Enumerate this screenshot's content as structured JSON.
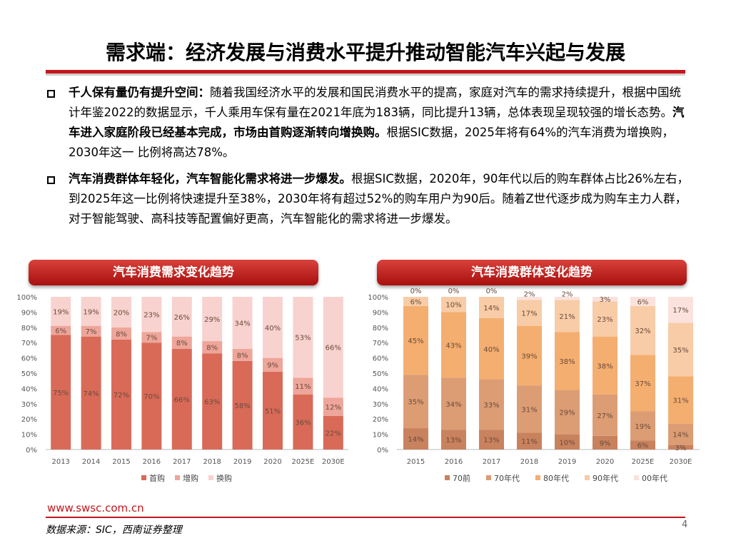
{
  "page": {
    "title": "需求端：经济发展与消费水平提升推动智能汽车兴起与发展",
    "bullets": [
      {
        "parts": [
          {
            "text": "千人保有量仍有提升空间：",
            "bold": true
          },
          {
            "text": "随着我国经济水平的发展和国民消费水平的提高，家庭对汽车的需求持续提升，根据中国统计年鉴2022的数据显示，千人乘用车保有量在2021年底为183辆，同比提升13辆，总体表现呈现较强的增长态势。",
            "bold": false
          },
          {
            "text": "汽车进入家庭阶段已经基本完成，市场由首购逐渐转向增换购。",
            "bold": true
          },
          {
            "text": "根据SIC数据，2025年将有64%的汽车消费为增换购，2030年这一 比例将高达78%。",
            "bold": false
          }
        ]
      },
      {
        "parts": [
          {
            "text": "汽车消费群体年轻化，汽车智能化需求将进一步爆发。",
            "bold": true
          },
          {
            "text": "根据SIC数据，2020年，90年代以后的购车群体占比26%左右，到2025年这一比例将快速提升至38%，2030年将有超过52%的购车用户为90后。随着Z世代逐步成为购车主力人群，对于智能驾驶、高科技等配置偏好更高，汽车智能化的需求将进一步爆发。",
            "bold": false
          }
        ]
      }
    ],
    "footer_url": "www.swsc.com.cn",
    "footer_source": "数据来源：SIC，西南证券整理",
    "page_number": "4"
  },
  "colors": {
    "accent_red": "#c4161c"
  },
  "chart_data": [
    {
      "type": "bar",
      "stacked": true,
      "percent": true,
      "title": "汽车消费需求变化趋势",
      "categories": [
        "2013",
        "2014",
        "2015",
        "2016",
        "2017",
        "2018",
        "2019",
        "2020",
        "2025E",
        "2030E"
      ],
      "yticks": [
        "0%",
        "10%",
        "20%",
        "30%",
        "40%",
        "50%",
        "60%",
        "70%",
        "80%",
        "90%",
        "100%"
      ],
      "ylim": [
        0,
        100
      ],
      "legend_position": "bottom",
      "series": [
        {
          "name": "首购",
          "color": "#d96a58",
          "values": [
            75,
            74,
            72,
            70,
            66,
            63,
            58,
            51,
            36,
            22
          ]
        },
        {
          "name": "增购",
          "color": "#eea59a",
          "values": [
            6,
            7,
            8,
            7,
            8,
            8,
            8,
            9,
            11,
            12
          ]
        },
        {
          "name": "换购",
          "color": "#f8d2ce",
          "values": [
            19,
            19,
            20,
            23,
            26,
            29,
            34,
            40,
            53,
            66
          ]
        }
      ]
    },
    {
      "type": "bar",
      "stacked": true,
      "percent": true,
      "title": "汽车消费群体变化趋势",
      "categories": [
        "2015",
        "2016",
        "2017",
        "2018",
        "2019",
        "2020",
        "2025E",
        "2030E"
      ],
      "yticks": [
        "0%",
        "10%",
        "20%",
        "30%",
        "40%",
        "50%",
        "60%",
        "70%",
        "80%",
        "90%",
        "100%"
      ],
      "ylim": [
        0,
        100
      ],
      "legend_position": "bottom",
      "series": [
        {
          "name": "70前",
          "color": "#c9825e",
          "values": [
            14,
            13,
            13,
            11,
            10,
            9,
            6,
            3
          ]
        },
        {
          "name": "70年代",
          "color": "#dc9d74",
          "values": [
            35,
            34,
            33,
            31,
            29,
            27,
            19,
            14
          ]
        },
        {
          "name": "80年代",
          "color": "#f4ae6f",
          "values": [
            45,
            43,
            40,
            39,
            38,
            38,
            37,
            31
          ]
        },
        {
          "name": "90年代",
          "color": "#f8cca6",
          "values": [
            6,
            10,
            14,
            17,
            21,
            23,
            32,
            35
          ]
        },
        {
          "name": "00年代",
          "color": "#fbe2dc",
          "values": [
            0,
            0,
            0,
            2,
            2,
            3,
            6,
            17
          ]
        }
      ]
    }
  ]
}
